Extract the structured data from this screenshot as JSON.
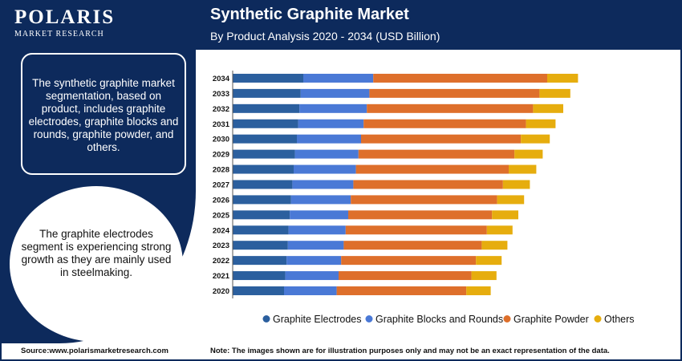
{
  "header": {
    "brand": "POLARIS",
    "brand_sub": "MARKET RESEARCH",
    "title": "Synthetic Graphite Market",
    "subtitle": "By Product Analysis 2020 - 2034 (USD Billion)"
  },
  "sidebar": {
    "description": "The synthetic graphite market segmentation, based on product, includes graphite electrodes, graphite blocks and rounds, graphite powder, and others.",
    "insight": "The graphite electrodes segment is experiencing strong growth as they are mainly used in steelmaking."
  },
  "footer": {
    "source": "Source:www.polarismarketresearch.com",
    "note": "Note: The images shown are for illustration purposes only and may not be an exact representation of the data."
  },
  "colors": {
    "navy": "#0d2a5c",
    "graphite_electrodes": "#2b5f9e",
    "graphite_blocks": "#4a79d6",
    "graphite_powder": "#de6f2b",
    "others": "#e6ad0e"
  },
  "chart_data": {
    "type": "bar",
    "orientation": "horizontal",
    "stacked": true,
    "title": "",
    "categories": [
      "2034",
      "2033",
      "2032",
      "2031",
      "2030",
      "2029",
      "2028",
      "2027",
      "2026",
      "2025",
      "2024",
      "2023",
      "2022",
      "2021",
      "2020"
    ],
    "series": [
      {
        "name": "Graphite Electrodes",
        "color": "#2b5f9e",
        "values": [
          110,
          106,
          104,
          102,
          100,
          97,
          95,
          93,
          91,
          89,
          87,
          86,
          84,
          82,
          80
        ]
      },
      {
        "name": "Graphite Blocks and Rounds",
        "color": "#4a79d6",
        "values": [
          109,
          107,
          105,
          102,
          100,
          99,
          97,
          95,
          93,
          91,
          89,
          87,
          85,
          83,
          82
        ]
      },
      {
        "name": "Graphite Powder",
        "color": "#de6f2b",
        "values": [
          271,
          265,
          259,
          253,
          249,
          243,
          238,
          233,
          228,
          224,
          220,
          215,
          210,
          207,
          202
        ]
      },
      {
        "name": "Others",
        "color": "#e6ad0e",
        "values": [
          48,
          48,
          47,
          46,
          45,
          44,
          43,
          42,
          42,
          41,
          40,
          40,
          40,
          39,
          38
        ]
      }
    ],
    "legend_position": "bottom",
    "grid": false
  }
}
